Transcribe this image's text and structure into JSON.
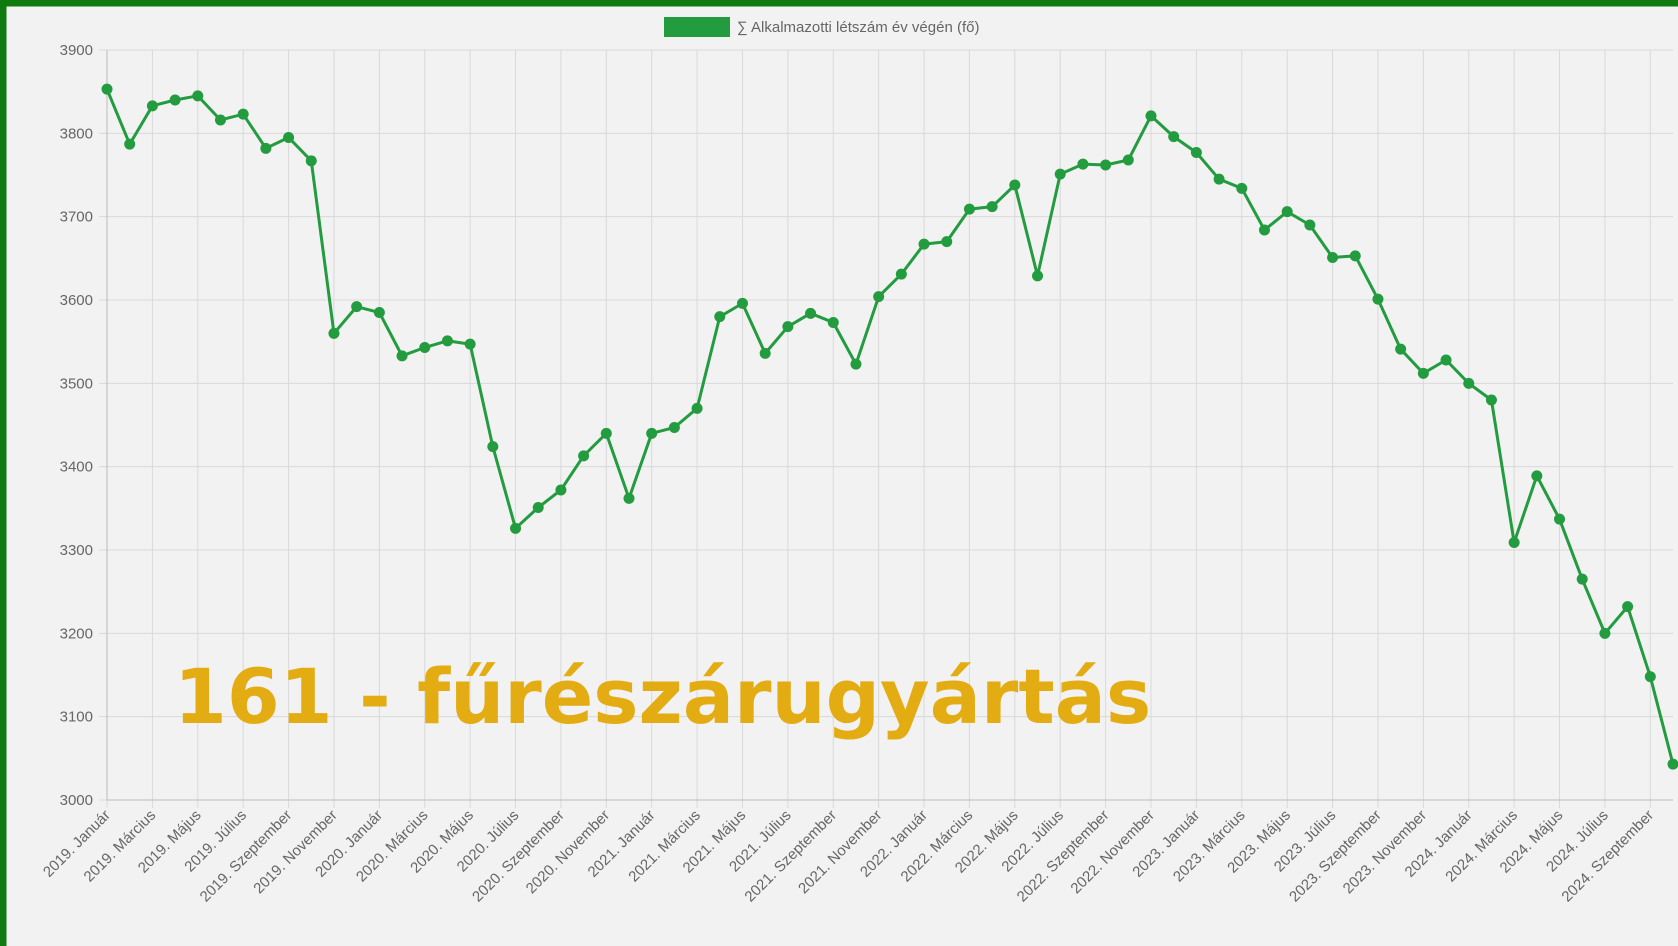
{
  "chart_data": {
    "type": "line",
    "series": [
      {
        "name": "∑ Alkalmazotti létszám év végén (fő)",
        "color": "#239b3f",
        "values": [
          3853,
          3787,
          3833,
          3840,
          3845,
          3816,
          3823,
          3782,
          3795,
          3767,
          3560,
          3592,
          3585,
          3533,
          3543,
          3551,
          3547,
          3424,
          3326,
          3351,
          3372,
          3413,
          3440,
          3362,
          3440,
          3447,
          3470,
          3580,
          3596,
          3536,
          3568,
          3584,
          3573,
          3523,
          3604,
          3631,
          3667,
          3670,
          3709,
          3712,
          3738,
          3629,
          3751,
          3763,
          3762,
          3768,
          3821,
          3796,
          3777,
          3745,
          3734,
          3684,
          3706,
          3690,
          3651,
          3653,
          3601,
          3541,
          3512,
          3528,
          3500,
          3480,
          3309,
          3389,
          3337,
          3265,
          3200,
          3232,
          3148,
          3043
        ]
      }
    ],
    "categories": [
      "2019. Január",
      null,
      "2019. Március",
      null,
      "2019. Május",
      null,
      "2019. Július",
      null,
      "2019. Szeptember",
      null,
      "2019. November",
      null,
      "2020. Január",
      null,
      "2020. Március",
      null,
      "2020. Május",
      null,
      "2020. Július",
      null,
      "2020. Szeptember",
      null,
      "2020. November",
      null,
      "2021. Január",
      null,
      "2021. Március",
      null,
      "2021. Május",
      null,
      "2021. Július",
      null,
      "2021. Szeptember",
      null,
      "2021. November",
      null,
      "2022. Január",
      null,
      "2022. Március",
      null,
      "2022. Május",
      null,
      "2022. Július",
      null,
      "2022. Szeptember",
      null,
      "2022. November",
      null,
      "2023. Január",
      null,
      "2023. Március",
      null,
      "2023. Május",
      null,
      "2023. Július",
      null,
      "2023. Szeptember",
      null,
      "2023. November",
      null,
      "2024. Január",
      null,
      "2024. Március",
      null,
      "2024. Május",
      null,
      "2024. Július",
      null,
      "2024. Szeptember",
      null
    ],
    "ylim": [
      3000,
      3900
    ],
    "yticks": [
      3000,
      3100,
      3200,
      3300,
      3400,
      3500,
      3600,
      3700,
      3800,
      3900
    ],
    "grid": true,
    "legend": "top",
    "annotation": "161 - fűrészárugyártás",
    "annotation_color": "#e3ac12"
  }
}
